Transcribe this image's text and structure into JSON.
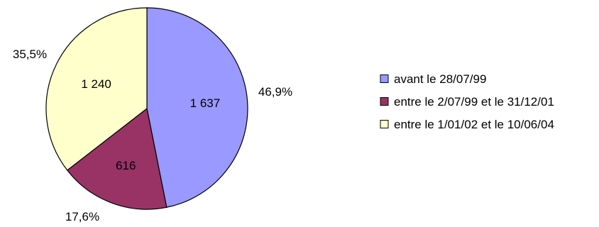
{
  "chart_data": {
    "type": "pie",
    "title": "",
    "slices": [
      {
        "label": "avant le 28/07/99",
        "value": 1637,
        "value_label": "1 637",
        "percent_label": "46,9%",
        "color": "#9999ff"
      },
      {
        "label": "entre le 2/07/99 et le 31/12/01",
        "value": 616,
        "value_label": "616",
        "percent_label": "17,6%",
        "color": "#993366"
      },
      {
        "label": "entre le 1/01/02 et le 10/06/04",
        "value": 1240,
        "value_label": "1 240",
        "percent_label": "35,5%",
        "color": "#ffffcc"
      }
    ],
    "start_angle": "12 o'clock",
    "direction": "clockwise",
    "legend_position": "right"
  }
}
